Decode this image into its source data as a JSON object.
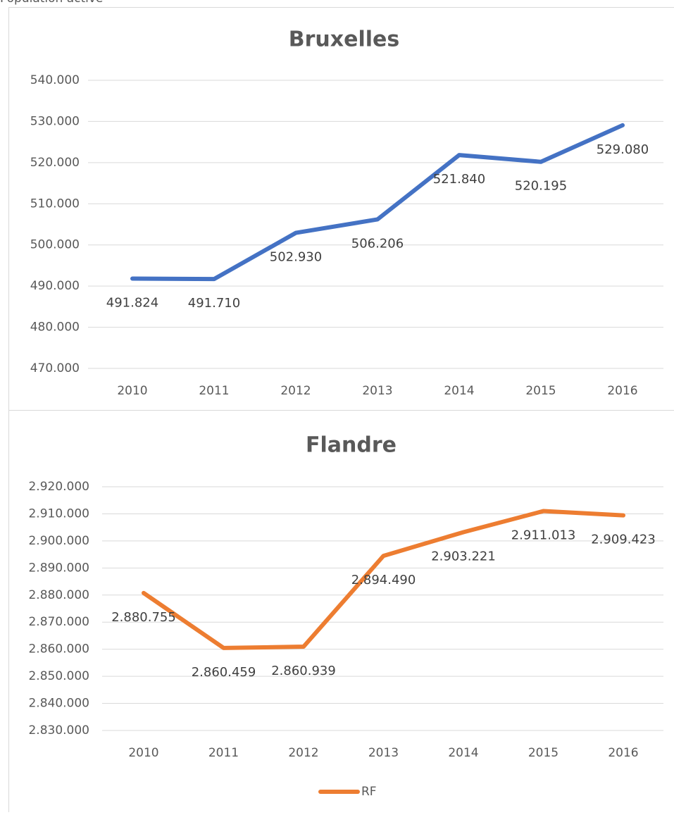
{
  "header": {
    "title": "Population active"
  },
  "chart_data": [
    {
      "type": "line",
      "title": "Bruxelles",
      "categories": [
        "2010",
        "2011",
        "2012",
        "2013",
        "2014",
        "2015",
        "2016"
      ],
      "series": [
        {
          "color": "#4472c4",
          "values": [
            491824,
            491710,
            502930,
            506206,
            521840,
            520195,
            529080
          ],
          "value_labels": [
            "491.824",
            "491.710",
            "502.930",
            "506.206",
            "521.840",
            "520.195",
            "529.080"
          ]
        }
      ],
      "ylim": [
        470000,
        540000
      ],
      "yticks": [
        {
          "value": 470000,
          "label": "470.000"
        },
        {
          "value": 480000,
          "label": "480.000"
        },
        {
          "value": 490000,
          "label": "490.000"
        },
        {
          "value": 500000,
          "label": "500.000"
        },
        {
          "value": 510000,
          "label": "510.000"
        },
        {
          "value": 520000,
          "label": "520.000"
        },
        {
          "value": 530000,
          "label": "530.000"
        },
        {
          "value": 540000,
          "label": "540.000"
        }
      ],
      "grid": true
    },
    {
      "type": "line",
      "title": "Flandre",
      "categories": [
        "2010",
        "2011",
        "2012",
        "2013",
        "2014",
        "2015",
        "2016"
      ],
      "series": [
        {
          "name": "RF",
          "color": "#ed7d31",
          "values": [
            2880755,
            2860459,
            2860939,
            2894490,
            2903221,
            2911013,
            2909423
          ],
          "value_labels": [
            "2.880.755",
            "2.860.459",
            "2.860.939",
            "2.894.490",
            "2.903.221",
            "2.911.013",
            "2.909.423"
          ]
        }
      ],
      "ylim": [
        2830000,
        2920000
      ],
      "yticks": [
        {
          "value": 2830000,
          "label": "2.830.000"
        },
        {
          "value": 2840000,
          "label": "2.840.000"
        },
        {
          "value": 2850000,
          "label": "2.850.000"
        },
        {
          "value": 2860000,
          "label": "2.860.000"
        },
        {
          "value": 2870000,
          "label": "2.870.000"
        },
        {
          "value": 2880000,
          "label": "2.880.000"
        },
        {
          "value": 2890000,
          "label": "2.890.000"
        },
        {
          "value": 2900000,
          "label": "2.900.000"
        },
        {
          "value": 2910000,
          "label": "2.910.000"
        },
        {
          "value": 2920000,
          "label": "2.920.000"
        }
      ],
      "grid": true,
      "legend": "bottom"
    }
  ]
}
